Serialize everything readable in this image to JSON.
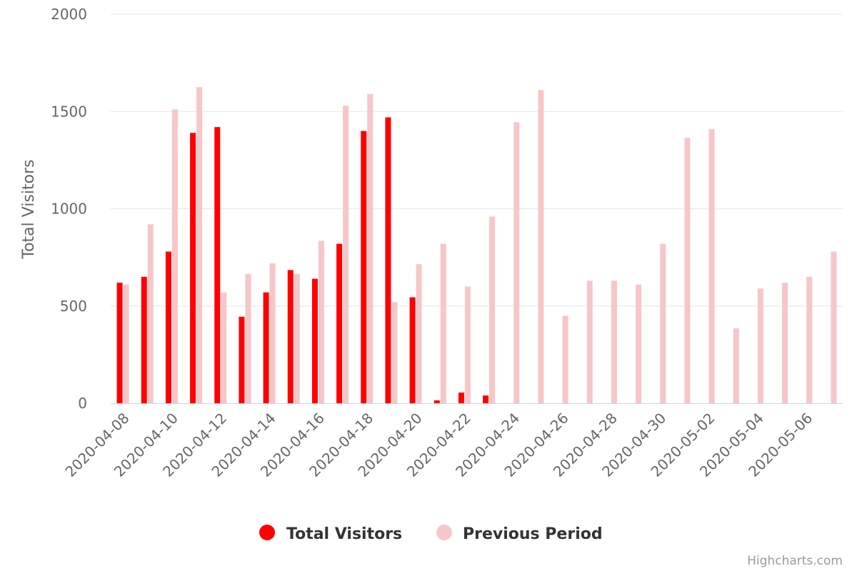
{
  "chart_data": {
    "type": "bar",
    "ylabel": "Total Visitors",
    "ylim": [
      0,
      2000
    ],
    "yticks": [
      "0",
      "500",
      "1000",
      "1500",
      "2000"
    ],
    "grid": true,
    "legend_position": "bottom-center",
    "categories": [
      "2020-04-08",
      "2020-04-09",
      "2020-04-10",
      "2020-04-11",
      "2020-04-12",
      "2020-04-13",
      "2020-04-14",
      "2020-04-15",
      "2020-04-16",
      "2020-04-17",
      "2020-04-18",
      "2020-04-19",
      "2020-04-20",
      "2020-04-21",
      "2020-04-22",
      "2020-04-23",
      "2020-04-24",
      "2020-04-25",
      "2020-04-26",
      "2020-04-27",
      "2020-04-28",
      "2020-04-29",
      "2020-04-30",
      "2020-05-01",
      "2020-05-02",
      "2020-05-03",
      "2020-05-04",
      "2020-05-05",
      "2020-05-06",
      "2020-05-07"
    ],
    "tick_labels": [
      "2020-04-08",
      "2020-04-10",
      "2020-04-12",
      "2020-04-14",
      "2020-04-16",
      "2020-04-18",
      "2020-04-20",
      "2020-04-22",
      "2020-04-24",
      "2020-04-26",
      "2020-04-28",
      "2020-04-30",
      "2020-05-02",
      "2020-05-04",
      "2020-05-06"
    ],
    "series": [
      {
        "name": "Total Visitors",
        "color": "#ff0000",
        "values": [
          620,
          650,
          780,
          1390,
          1420,
          445,
          570,
          685,
          640,
          820,
          1400,
          1470,
          545,
          15,
          55,
          40,
          0,
          0,
          0,
          0,
          0,
          0,
          0,
          0,
          0,
          0,
          0,
          0,
          0,
          0
        ]
      },
      {
        "name": "Previous Period",
        "color": "#f7c6c8",
        "values": [
          610,
          920,
          1510,
          1625,
          570,
          665,
          720,
          665,
          835,
          1530,
          1590,
          520,
          715,
          820,
          600,
          960,
          1445,
          1610,
          450,
          630,
          630,
          610,
          820,
          1365,
          1410,
          385,
          590,
          620,
          650,
          780
        ]
      }
    ]
  },
  "credits": "Highcharts.com"
}
